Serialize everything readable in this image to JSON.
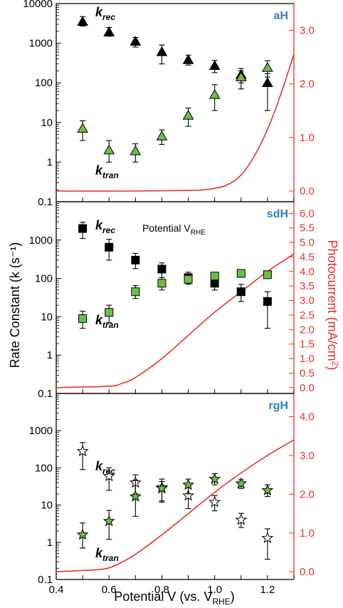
{
  "colors": {
    "axis": "#000000",
    "right_axis": "#e8302a",
    "curve": "#e8302a",
    "kran_fill": "#6cbf45",
    "panel_label": "#2e7fc0"
  },
  "figure": {
    "y_axis_label": "Rate Constant (k (s⁻¹)",
    "y2_axis_label": "Photocurrent (mA/cm²)",
    "y2_axis_label_main": "Photocurrent (mA/cm",
    "y2_axis_label_sup": "2",
    "y2_axis_label_tail": ")",
    "x_axis_label_main": "Potential V (vs. V",
    "x_axis_label_sub": "RHE",
    "x_axis_label_tail": ")",
    "x_ticks": [
      "0.4",
      "0.6",
      "0.8",
      "1.0",
      "1.2"
    ],
    "k_rec_main": "k",
    "k_rec_sub": "rec",
    "k_tran_main": "k",
    "k_tran_sub": "tran",
    "annotation_main": "Potential V",
    "annotation_sub": "RHE"
  },
  "chart_data": [
    {
      "type": "scatter",
      "title": "aH",
      "marker": "triangle",
      "xlim": [
        0.4,
        1.3
      ],
      "y_scale": "log",
      "ylim": [
        0.1,
        10000
      ],
      "y_ticks": [
        "0.1",
        "1",
        "10",
        "100",
        "1000",
        "10000"
      ],
      "y2lim": [
        -0.2,
        3.5
      ],
      "y2_ticks": [
        "0.0",
        "1.0",
        "2.0",
        "3.0"
      ],
      "series": [
        {
          "name": "k_rec",
          "x": [
            0.5,
            0.6,
            0.7,
            0.8,
            0.9,
            1.0,
            1.1,
            1.2
          ],
          "y": [
            3500,
            1900,
            1100,
            600,
            380,
            270,
            160,
            100
          ],
          "err_up": [
            1200,
            600,
            300,
            300,
            120,
            100,
            70,
            70
          ],
          "err_down": [
            800,
            400,
            300,
            300,
            100,
            90,
            90,
            80
          ]
        },
        {
          "name": "k_tran",
          "x": [
            0.5,
            0.6,
            0.7,
            0.8,
            0.9,
            1.0,
            1.1,
            1.2
          ],
          "y": [
            7,
            2,
            1.9,
            4.5,
            15,
            50,
            140,
            240
          ],
          "err_up": [
            4,
            1.5,
            1,
            2,
            8,
            40,
            60,
            120
          ],
          "err_down": [
            3.5,
            1,
            0.9,
            1.7,
            7,
            30,
            40,
            100
          ]
        },
        {
          "name": "Photocurrent",
          "axis": "right",
          "x": [
            0.4,
            0.7,
            0.9,
            0.95,
            1.0,
            1.05,
            1.1,
            1.15,
            1.2,
            1.25,
            1.3
          ],
          "y": [
            0.0,
            0.0,
            0.01,
            0.02,
            0.05,
            0.12,
            0.3,
            0.65,
            1.15,
            1.8,
            2.55
          ]
        }
      ]
    },
    {
      "type": "scatter",
      "title": "sdH",
      "marker": "square",
      "xlim": [
        0.4,
        1.3
      ],
      "y_scale": "log",
      "ylim": [
        0.1,
        10000
      ],
      "y_ticks": [
        "0.1",
        "1",
        "10",
        "100",
        "1000"
      ],
      "y2lim": [
        -0.2,
        6.4
      ],
      "y2_ticks": [
        "0.0",
        "0.5",
        "1.0",
        "1.5",
        "2.0",
        "2.5",
        "3.0",
        "3.5",
        "4.0",
        "4.5",
        "5.0",
        "5.5",
        "6.0"
      ],
      "series": [
        {
          "name": "k_rec",
          "x": [
            0.5,
            0.6,
            0.7,
            0.8,
            0.9,
            1.0,
            1.1,
            1.2
          ],
          "y": [
            2000,
            650,
            300,
            175,
            105,
            75,
            45,
            25
          ],
          "err_up": [
            900,
            400,
            150,
            80,
            40,
            30,
            25,
            20
          ],
          "err_down": [
            900,
            350,
            120,
            70,
            30,
            25,
            20,
            20
          ]
        },
        {
          "name": "k_tran",
          "x": [
            0.5,
            0.6,
            0.7,
            0.8,
            0.9,
            1.0,
            1.1,
            1.2
          ],
          "y": [
            9,
            13,
            45,
            75,
            95,
            115,
            135,
            125
          ],
          "err_up": [
            5,
            7,
            20,
            30,
            30,
            25,
            25,
            15
          ],
          "err_down": [
            4,
            6,
            15,
            25,
            25,
            20,
            20,
            15
          ]
        },
        {
          "name": "Photocurrent",
          "axis": "right",
          "x": [
            0.4,
            0.6,
            0.65,
            0.7,
            0.8,
            0.9,
            1.0,
            1.1,
            1.2,
            1.3
          ],
          "y": [
            0.0,
            0.05,
            0.15,
            0.35,
            1.0,
            1.8,
            2.6,
            3.3,
            4.0,
            4.6
          ]
        }
      ]
    },
    {
      "type": "scatter",
      "title": "rgH",
      "marker": "star",
      "xlim": [
        0.4,
        1.3
      ],
      "y_scale": "log",
      "ylim": [
        0.1,
        10000
      ],
      "y_ticks": [
        "0.1",
        "1",
        "10",
        "100",
        "1000"
      ],
      "y2lim": [
        -0.2,
        4.6
      ],
      "y2_ticks": [
        "0.0",
        "1.0",
        "2.0",
        "3.0",
        "4.0"
      ],
      "series": [
        {
          "name": "k_rec",
          "x": [
            0.5,
            0.6,
            0.7,
            0.8,
            0.9,
            1.0,
            1.1,
            1.2
          ],
          "y": [
            280,
            60,
            40,
            30,
            18,
            12,
            4,
            1.3
          ],
          "err_up": [
            200,
            40,
            25,
            20,
            15,
            6,
            2,
            1
          ],
          "err_down": [
            190,
            35,
            20,
            18,
            10,
            5,
            1.5,
            0.95
          ]
        },
        {
          "name": "k_tran",
          "x": [
            0.5,
            0.6,
            0.7,
            0.8,
            0.9,
            1.0,
            1.1,
            1.2
          ],
          "y": [
            1.6,
            3.7,
            17,
            28,
            35,
            50,
            38,
            25
          ],
          "err_up": [
            1.7,
            3.5,
            30,
            15,
            15,
            20,
            10,
            10
          ],
          "err_down": [
            0.9,
            2.5,
            12,
            15,
            15,
            15,
            10,
            8
          ]
        },
        {
          "name": "Photocurrent",
          "axis": "right",
          "x": [
            0.4,
            0.55,
            0.6,
            0.65,
            0.7,
            0.8,
            0.9,
            1.0,
            1.1,
            1.2,
            1.3
          ],
          "y": [
            0.0,
            0.05,
            0.1,
            0.25,
            0.45,
            0.95,
            1.5,
            2.05,
            2.55,
            3.0,
            3.4
          ]
        }
      ]
    }
  ]
}
